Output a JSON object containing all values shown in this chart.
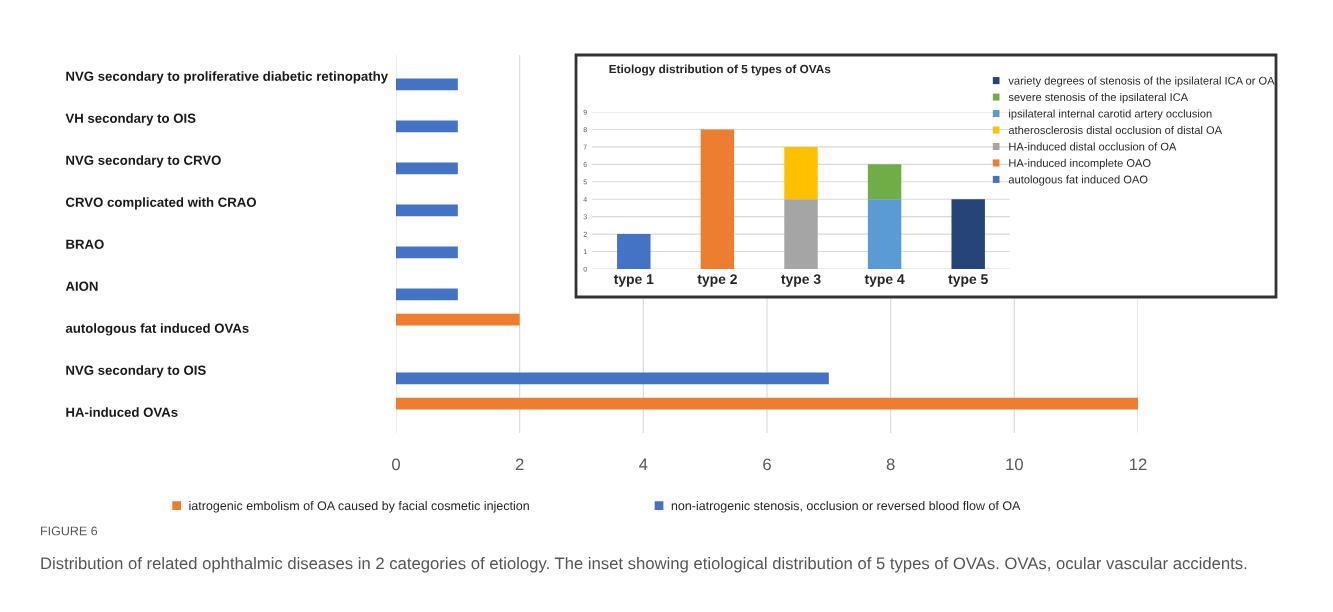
{
  "chart_data": [
    {
      "type": "bar",
      "orientation": "horizontal",
      "categories": [
        "NVG secondary to proliferative diabetic retinopathy",
        "VH secondary to OIS",
        "NVG secondary to CRVO",
        "CRVO complicated with CRAO",
        "BRAO",
        "AION",
        "autologous fat induced OVAs",
        "NVG secondary to OIS",
        "HA-induced OVAs"
      ],
      "series": [
        {
          "name": "iatrogenic embolism of OA caused by facial cosmetic injection",
          "color": "#ed7d31",
          "values": [
            null,
            null,
            null,
            null,
            null,
            null,
            2,
            null,
            12
          ]
        },
        {
          "name": "non-iatrogenic stenosis, occlusion or reversed blood flow of OA",
          "color": "#4472c4",
          "values": [
            1,
            1,
            1,
            1,
            1,
            1,
            null,
            7,
            null
          ]
        }
      ],
      "xlim": [
        0,
        12
      ],
      "xticks": [
        0,
        2,
        4,
        6,
        8,
        10,
        12
      ],
      "grid": "x",
      "legend": "bottom",
      "annotations": [
        "FIGURE 6",
        "Distribution of related ophthalmic diseases in 2 categories of etiology. The inset showing etiological distribution of 5 types of OVAs. OVAs, ocular vascular accidents."
      ]
    },
    {
      "type": "bar",
      "stacked": true,
      "title": "Etiology distribution of 5 types of OVAs",
      "categories": [
        "type 1",
        "type 2",
        "type 3",
        "type 4",
        "type 5"
      ],
      "series": [
        {
          "name": "autologous fat induced OAO",
          "color": "#4472c4",
          "values": [
            2,
            null,
            null,
            null,
            null
          ]
        },
        {
          "name": "HA-induced incomplete OAO",
          "color": "#ed7d31",
          "values": [
            null,
            8,
            null,
            null,
            null
          ]
        },
        {
          "name": "HA-induced distal occlusion of OA",
          "color": "#a5a5a5",
          "values": [
            null,
            null,
            4,
            null,
            null
          ]
        },
        {
          "name": "atherosclerosis distal occlusion of distal OA",
          "color": "#ffc000",
          "values": [
            null,
            null,
            3,
            null,
            null
          ]
        },
        {
          "name": "ipsilateral internal carotid artery occlusion",
          "color": "#5b9bd5",
          "values": [
            null,
            null,
            null,
            4,
            null
          ]
        },
        {
          "name": "severe stenosis of the ipsilateral ICA",
          "color": "#70ad47",
          "values": [
            null,
            null,
            null,
            2,
            null
          ]
        },
        {
          "name": "variety degrees of stenosis of the ipsilateral ICA or OA",
          "color": "#264478",
          "values": [
            null,
            null,
            null,
            null,
            4
          ]
        }
      ],
      "ylim": [
        0,
        9
      ],
      "yticks": [
        0,
        1,
        2,
        3,
        4,
        5,
        6,
        7,
        8,
        9
      ],
      "grid": "y",
      "legend": "top right"
    }
  ]
}
